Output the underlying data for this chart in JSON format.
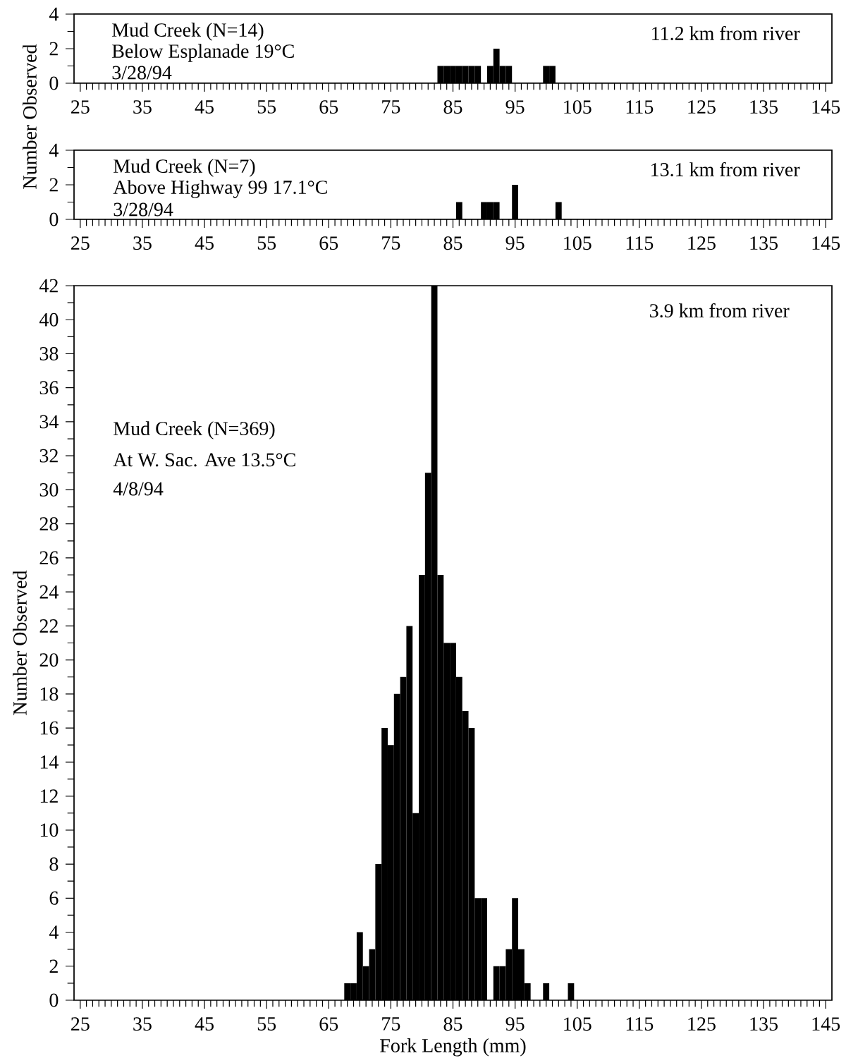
{
  "chart_data": [
    {
      "type": "histogram",
      "ylabel": "Number Observed",
      "color": "#000000",
      "xlim": [
        24,
        146
      ],
      "ylim": [
        0,
        4
      ],
      "xticks": [
        25,
        35,
        45,
        55,
        65,
        75,
        85,
        95,
        105,
        115,
        125,
        135,
        145
      ],
      "yticks": [
        0,
        2,
        4
      ],
      "bins": [
        82.5,
        83.5,
        84.5,
        85.5,
        86.5,
        87.5,
        88.5,
        89.5,
        90.5,
        91.5,
        92.5,
        93.5,
        94.5,
        95.5,
        96.5,
        97.5,
        98.5,
        99.5,
        100.5,
        101.5
      ],
      "values": [
        1,
        1,
        1,
        1,
        1,
        1,
        1,
        0,
        1,
        2,
        1,
        1,
        0,
        0,
        0,
        0,
        0,
        1,
        1
      ],
      "annotations": [
        "Mud Creek (N=14)",
        "Below Esplanade 19°C",
        "3/28/94",
        "11.2 km from river"
      ]
    },
    {
      "type": "histogram",
      "color": "#000000",
      "xlim": [
        24,
        146
      ],
      "ylim": [
        0,
        4
      ],
      "xticks": [
        25,
        35,
        45,
        55,
        65,
        75,
        85,
        95,
        105,
        115,
        125,
        135,
        145
      ],
      "yticks": [
        0,
        2,
        4
      ],
      "bins": [
        85.5,
        86.5,
        87.5,
        88.5,
        89.5,
        90.5,
        91.5,
        92.5,
        93.5,
        94.5,
        95.5,
        96.5,
        97.5,
        98.5,
        99.5,
        100.5,
        101.5,
        102.5
      ],
      "values": [
        1,
        0,
        0,
        0,
        1,
        1,
        1,
        0,
        0,
        2,
        0,
        0,
        0,
        0,
        0,
        0,
        1
      ],
      "annotations": [
        "Mud Creek (N=7)",
        "Above Highway 99 17.1°C",
        "3/28/94",
        "13.1 km from river"
      ]
    },
    {
      "type": "histogram",
      "xlabel": "Fork Length (mm)",
      "ylabel": "Number Observed",
      "color": "#000000",
      "xlim": [
        24,
        146
      ],
      "ylim": [
        0,
        42
      ],
      "xticks": [
        25,
        35,
        45,
        55,
        65,
        75,
        85,
        95,
        105,
        115,
        125,
        135,
        145
      ],
      "yticks": [
        0,
        2,
        4,
        6,
        8,
        10,
        12,
        14,
        16,
        18,
        20,
        22,
        24,
        26,
        28,
        30,
        32,
        34,
        36,
        38,
        40,
        42
      ],
      "bins": [
        67.5,
        68.5,
        69.5,
        70.5,
        71.5,
        72.5,
        73.5,
        74.5,
        75.5,
        76.5,
        77.5,
        78.5,
        79.5,
        80.5,
        81.5,
        82.5,
        83.5,
        84.5,
        85.5,
        86.5,
        87.5,
        88.5,
        89.5,
        90.5,
        91.5,
        92.5,
        93.5,
        94.5,
        95.5,
        96.5,
        97.5,
        98.5,
        99.5,
        100.5,
        101.5,
        102.5,
        103.5,
        104.5
      ],
      "values": [
        1,
        1,
        4,
        2,
        3,
        8,
        16,
        15,
        18,
        19,
        22,
        11,
        25,
        31,
        42,
        25,
        21,
        21,
        19,
        17,
        16,
        6,
        6,
        0,
        2,
        2,
        3,
        6,
        3,
        1,
        0,
        0,
        1,
        0,
        0,
        0,
        1
      ],
      "annotations": [
        "Mud Creek (N=369)",
        "At W. Sac. Ave 13.5°C",
        "4/8/94",
        "3.9 km from river"
      ]
    }
  ]
}
